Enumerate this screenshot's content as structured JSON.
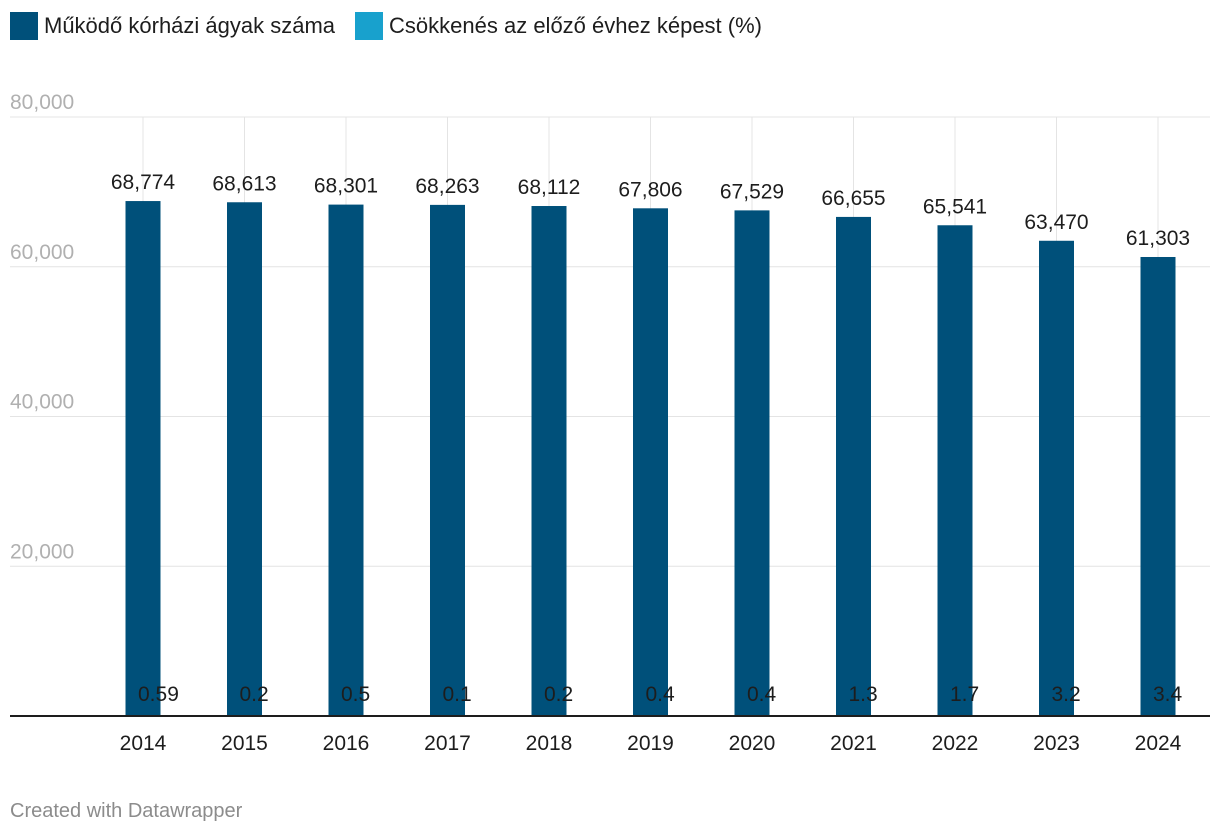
{
  "legend": {
    "series1": "Működő kórházi ágyak száma",
    "series2": "Csökkenés az előző évhez képest (%)"
  },
  "colors": {
    "series1": "#00507a",
    "series2": "#18a1cd",
    "grid": "#e4e4e4",
    "axis_text": "#b0b0b0",
    "text": "#1d1d1d"
  },
  "chart_data": {
    "type": "bar",
    "categories": [
      "2014",
      "2015",
      "2016",
      "2017",
      "2018",
      "2019",
      "2020",
      "2021",
      "2022",
      "2023",
      "2024"
    ],
    "series": [
      {
        "name": "Működő kórházi ágyak száma",
        "values": [
          68774,
          68613,
          68301,
          68263,
          68112,
          67806,
          67529,
          66655,
          65541,
          63470,
          61303
        ],
        "labels": [
          "68,774",
          "68,613",
          "68,301",
          "68,263",
          "68,112",
          "67,806",
          "67,529",
          "66,655",
          "65,541",
          "63,470",
          "61,303"
        ]
      },
      {
        "name": "Csökkenés az előző évhez képest (%)",
        "values": [
          0.59,
          0.2,
          0.5,
          0.1,
          0.2,
          0.4,
          0.4,
          1.3,
          1.7,
          3.2,
          3.4
        ],
        "labels": [
          "0.59",
          "0.2",
          "0.5",
          "0.1",
          "0.2",
          "0.4",
          "0.4",
          "1.3",
          "1.7",
          "3.2",
          "3.4"
        ]
      }
    ],
    "yticks": [
      20000,
      40000,
      60000,
      80000
    ],
    "ytick_labels": [
      "20,000",
      "40,000",
      "60,000",
      "80,000"
    ],
    "ylim": [
      0,
      80000
    ],
    "grid": true
  },
  "footer": "Created with Datawrapper"
}
